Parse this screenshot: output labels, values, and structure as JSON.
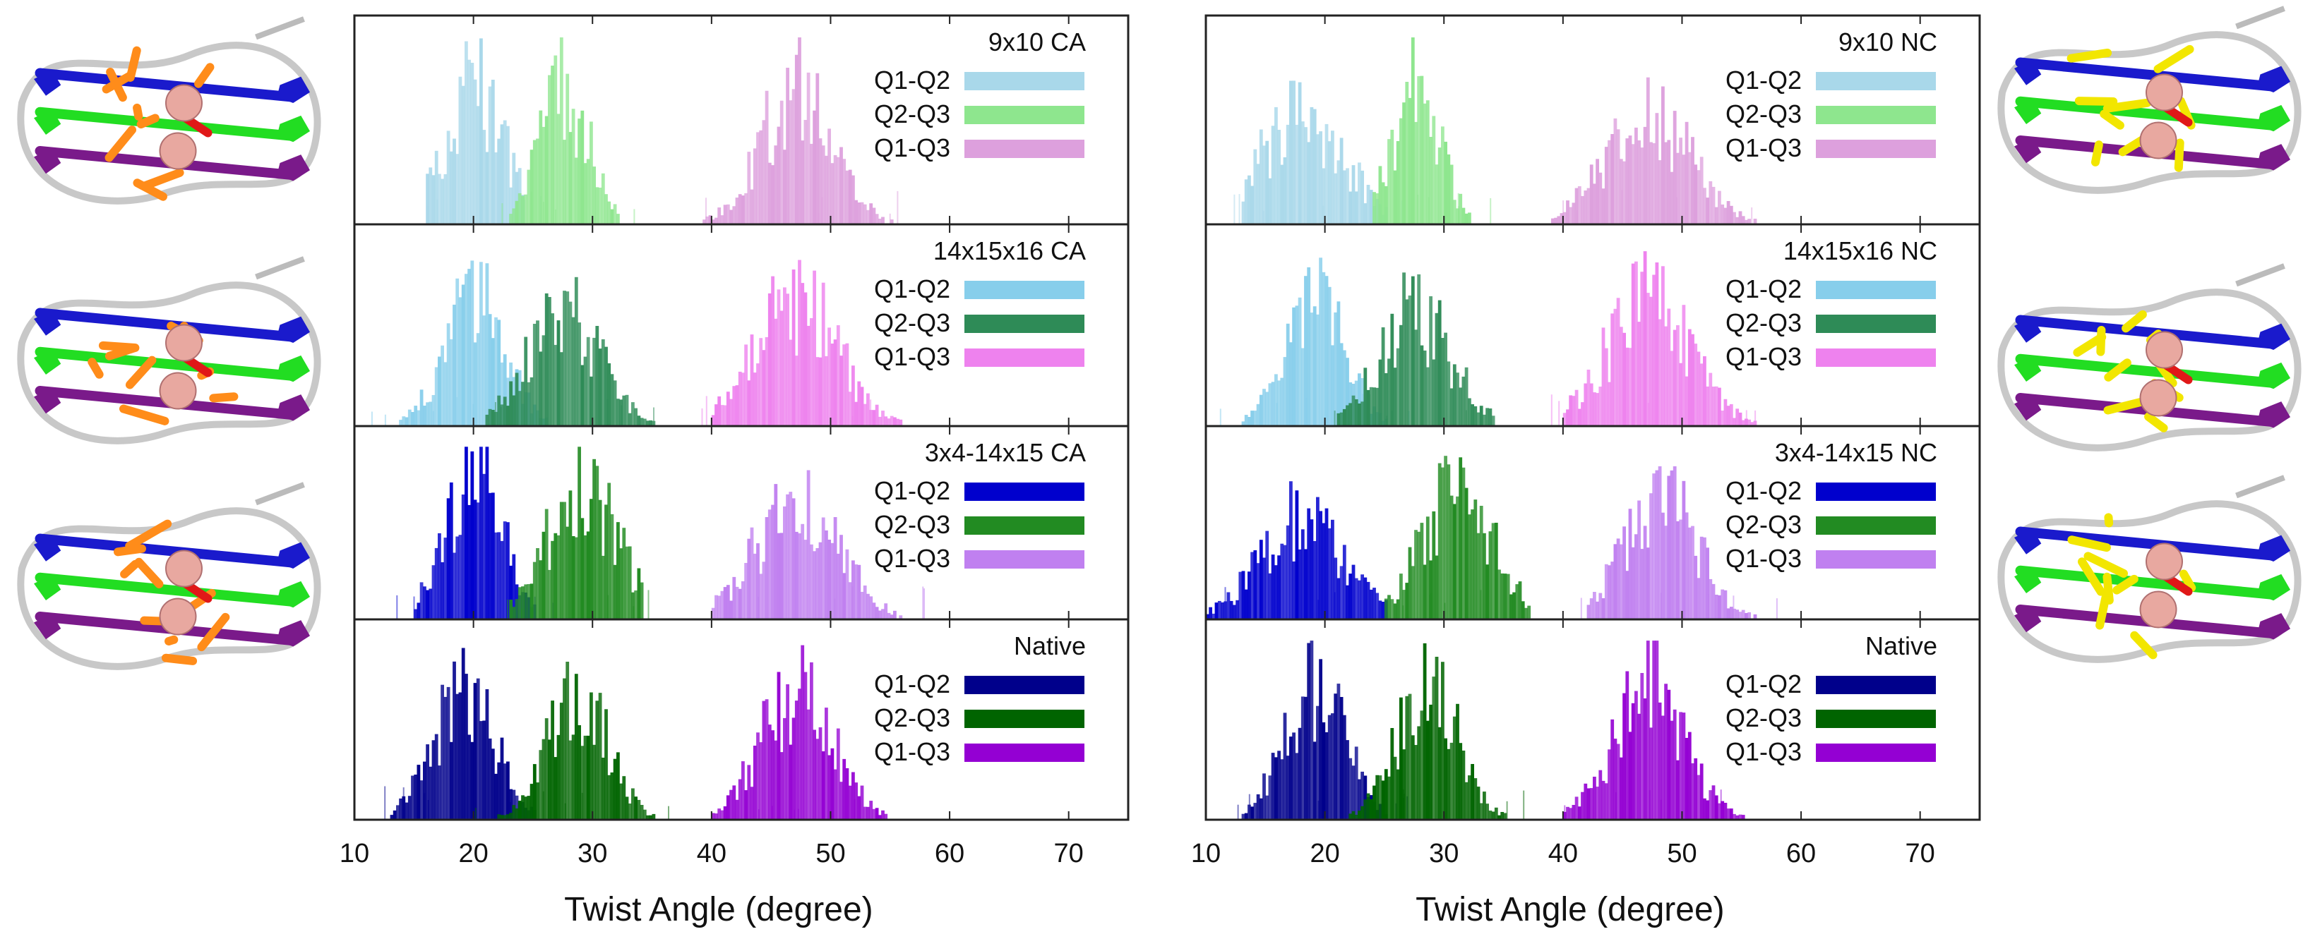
{
  "figure": {
    "xlabel": "Twist Angle (degree)",
    "xticks": [
      10,
      20,
      30,
      40,
      50,
      60,
      70
    ]
  },
  "colors": {
    "q12_light": "#a9d8ea",
    "q23_light": "#8ee68e",
    "q13_light": "#dda0dd",
    "q12_sky": "#87ceeb",
    "q23_sea": "#2e8b57",
    "q13_violet": "#ee82ee",
    "q12_blue": "#0000cd",
    "q23_green": "#228b22",
    "q13_orchid": "#c080f0",
    "q12_navy": "#00008b",
    "q23_dark": "#006400",
    "q13_purple": "#9400d3"
  },
  "chart_data": [
    {
      "id": "left",
      "type": "bar",
      "xlabel": "Twist Angle (degree)",
      "xlim": [
        10,
        75
      ],
      "panels": [
        {
          "title": "9x10 CA",
          "series": [
            {
              "name": "Q1-Q2",
              "color": "#a9d8ea",
              "mean": 20,
              "sd": 2.5,
              "range": [
                16,
                24
              ],
              "peak": 0.8
            },
            {
              "name": "Q2-Q3",
              "color": "#8ee68e",
              "mean": 27.5,
              "sd": 2,
              "range": [
                23,
                32
              ],
              "peak": 0.8
            },
            {
              "name": "Q1-Q3",
              "color": "#dda0dd",
              "mean": 47,
              "sd": 3,
              "range": [
                39,
                55
              ],
              "peak": 0.8
            }
          ]
        },
        {
          "title": "14x15x16 CA",
          "series": [
            {
              "name": "Q1-Q2",
              "color": "#87ceeb",
              "mean": 20,
              "sd": 2.5,
              "range": [
                13,
                26
              ],
              "peak": 0.8
            },
            {
              "name": "Q2-Q3",
              "color": "#2e8b57",
              "mean": 27.5,
              "sd": 3,
              "range": [
                21,
                35
              ],
              "peak": 0.7
            },
            {
              "name": "Q1-Q3",
              "color": "#ee82ee",
              "mean": 47,
              "sd": 3.5,
              "range": [
                40,
                56
              ],
              "peak": 0.75
            }
          ]
        },
        {
          "title": "3x4-14x15 CA",
          "series": [
            {
              "name": "Q1-Q2",
              "color": "#0000cd",
              "mean": 20,
              "sd": 2.5,
              "range": [
                15,
                25
              ],
              "peak": 0.85
            },
            {
              "name": "Q2-Q3",
              "color": "#228b22",
              "mean": 29,
              "sd": 3,
              "range": [
                23,
                34
              ],
              "peak": 0.85
            },
            {
              "name": "Q1-Q3",
              "color": "#c080f0",
              "mean": 47,
              "sd": 3.5,
              "range": [
                40,
                56
              ],
              "peak": 0.75
            }
          ]
        },
        {
          "title": "Native",
          "series": [
            {
              "name": "Q1-Q2",
              "color": "#00008b",
              "mean": 19,
              "sd": 2.5,
              "range": [
                13,
                25
              ],
              "peak": 0.85
            },
            {
              "name": "Q2-Q3",
              "color": "#006400",
              "mean": 28.5,
              "sd": 2.5,
              "range": [
                22,
                35
              ],
              "peak": 0.85
            },
            {
              "name": "Q1-Q3",
              "color": "#9400d3",
              "mean": 47,
              "sd": 3,
              "range": [
                40,
                55
              ],
              "peak": 0.8
            }
          ]
        }
      ]
    },
    {
      "id": "right",
      "type": "bar",
      "xlabel": "Twist Angle (degree)",
      "xlim": [
        10,
        75
      ],
      "panels": [
        {
          "title": "9x10 NC",
          "series": [
            {
              "name": "Q1-Q2",
              "color": "#a9d8ea",
              "mean": 18,
              "sd": 3.5,
              "range": [
                13,
                25
              ],
              "peak": 0.65
            },
            {
              "name": "Q2-Q3",
              "color": "#8ee68e",
              "mean": 27.5,
              "sd": 2,
              "range": [
                24,
                32
              ],
              "peak": 0.8
            },
            {
              "name": "Q1-Q3",
              "color": "#dda0dd",
              "mean": 47,
              "sd": 3.5,
              "range": [
                39,
                57
              ],
              "peak": 0.65
            }
          ]
        },
        {
          "title": "14x15x16 NC",
          "series": [
            {
              "name": "Q1-Q2",
              "color": "#87ceeb",
              "mean": 19,
              "sd": 2.5,
              "range": [
                13,
                25
              ],
              "peak": 0.8
            },
            {
              "name": "Q2-Q3",
              "color": "#2e8b57",
              "mean": 27.5,
              "sd": 3,
              "range": [
                21,
                34
              ],
              "peak": 0.7
            },
            {
              "name": "Q1-Q3",
              "color": "#ee82ee",
              "mean": 47,
              "sd": 3.5,
              "range": [
                40,
                56
              ],
              "peak": 0.75
            }
          ]
        },
        {
          "title": "3x4-14x15 NC",
          "series": [
            {
              "name": "Q1-Q2",
              "color": "#0000cd",
              "mean": 18,
              "sd": 3.5,
              "range": [
                10,
                25
              ],
              "peak": 0.65
            },
            {
              "name": "Q2-Q3",
              "color": "#228b22",
              "mean": 31,
              "sd": 3,
              "range": [
                25,
                37
              ],
              "peak": 0.8
            },
            {
              "name": "Q1-Q3",
              "color": "#c080f0",
              "mean": 48,
              "sd": 3,
              "range": [
                42,
                56
              ],
              "peak": 0.8
            }
          ]
        },
        {
          "title": "Native",
          "series": [
            {
              "name": "Q1-Q2",
              "color": "#00008b",
              "mean": 19,
              "sd": 2.5,
              "range": [
                13,
                25
              ],
              "peak": 0.85
            },
            {
              "name": "Q2-Q3",
              "color": "#006400",
              "mean": 28.5,
              "sd": 2.5,
              "range": [
                22,
                35
              ],
              "peak": 0.85
            },
            {
              "name": "Q1-Q3",
              "color": "#9400d3",
              "mean": 47,
              "sd": 3,
              "range": [
                40,
                55
              ],
              "peak": 0.8
            }
          ]
        }
      ]
    }
  ],
  "structures": {
    "left": [
      {
        "name": "structure-9x10-ca",
        "ligand": "#ff8c1a"
      },
      {
        "name": "structure-14x15x16-ca",
        "ligand": "#ff8c1a"
      },
      {
        "name": "structure-3x4-14x15-ca",
        "ligand": "#ff8c1a"
      }
    ],
    "right": [
      {
        "name": "structure-9x10-nc",
        "ligand": "#f2e600"
      },
      {
        "name": "structure-14x15x16-nc",
        "ligand": "#f2e600"
      },
      {
        "name": "structure-3x4-14x15-nc",
        "ligand": "#f2e600"
      }
    ]
  }
}
